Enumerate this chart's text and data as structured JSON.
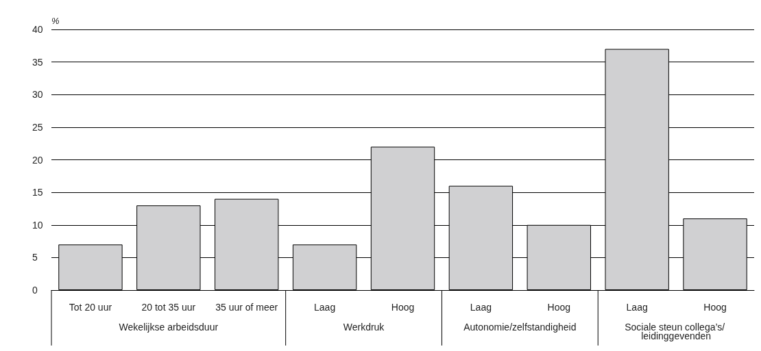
{
  "chart_data": {
    "type": "bar",
    "ylabel": "%",
    "categories": [
      "Tot 20 uur",
      "20 tot 35 uur",
      "35 uur of meer",
      "Laag",
      "Hoog",
      "Laag",
      "Hoog",
      "Laag",
      "Hoog"
    ],
    "values": [
      7,
      13,
      14,
      7,
      22,
      16,
      10,
      37,
      11
    ],
    "color": "#d0d0d2",
    "ylim": [
      0,
      40
    ],
    "yticks": [
      0,
      5,
      10,
      15,
      20,
      25,
      30,
      35,
      40
    ],
    "grid": "y",
    "annotations": [
      "Wekelijkse arbeidsduur",
      "Werkdruk",
      "Autonomie/zelfstandigheid",
      "Sociale steun collega’s/ leidinggevenden"
    ]
  }
}
